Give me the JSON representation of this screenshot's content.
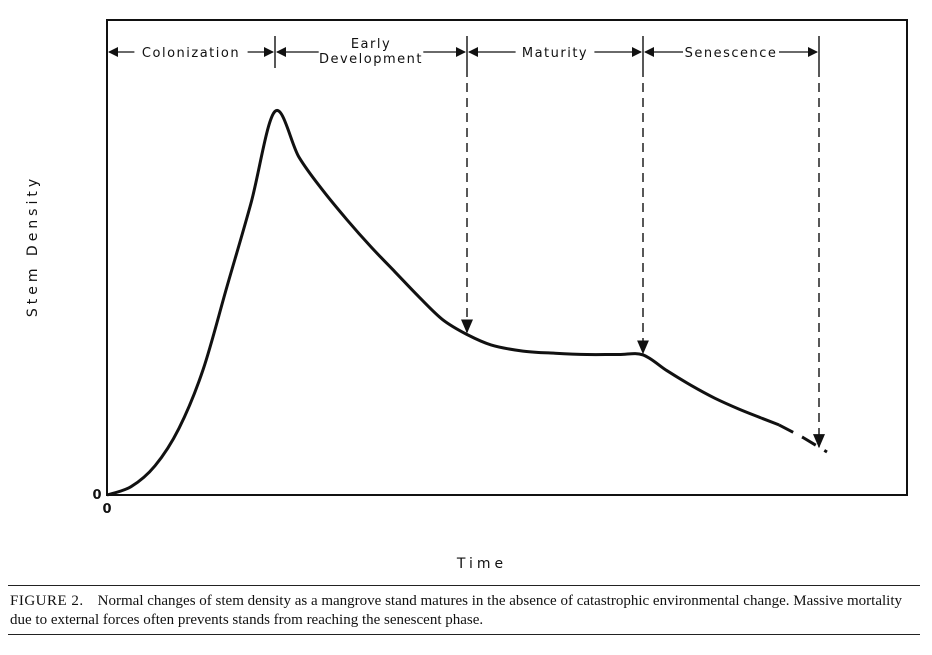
{
  "chart_data": {
    "type": "line",
    "xlabel": "Time",
    "ylabel": "Stem Density",
    "x_tick_labels": [
      "0"
    ],
    "y_tick_labels": [
      "0"
    ],
    "xlim": [
      0,
      100
    ],
    "ylim": [
      0,
      100
    ],
    "grid": false,
    "phases": [
      {
        "label_lines": [
          "Colonization"
        ],
        "start": 0,
        "end": 21
      },
      {
        "label_lines": [
          "Early",
          "Development"
        ],
        "start": 21,
        "end": 45
      },
      {
        "label_lines": [
          "Maturity"
        ],
        "start": 45,
        "end": 67
      },
      {
        "label_lines": [
          "Senescence"
        ],
        "start": 67,
        "end": 89
      }
    ],
    "phase_boundary_arrows": [
      {
        "x": 45,
        "y_target": 38.5
      },
      {
        "x": 67,
        "y_target": 33.5
      },
      {
        "x": 89,
        "y_target": 11.0
      }
    ],
    "series": [
      {
        "style": "solid",
        "points": [
          [
            0,
            0
          ],
          [
            3,
            2
          ],
          [
            6,
            7
          ],
          [
            9,
            16
          ],
          [
            12,
            30
          ],
          [
            15,
            50
          ],
          [
            18,
            70
          ],
          [
            21,
            92
          ],
          [
            24,
            81
          ],
          [
            27,
            73
          ],
          [
            30,
            66
          ],
          [
            33,
            59.5
          ],
          [
            36,
            53.5
          ],
          [
            39,
            47.5
          ],
          [
            42,
            42
          ],
          [
            45,
            38.5
          ],
          [
            48,
            36
          ],
          [
            52,
            34.5
          ],
          [
            56,
            34
          ],
          [
            60,
            33.7
          ],
          [
            64,
            33.7
          ],
          [
            67,
            33.6
          ],
          [
            70,
            29.8
          ],
          [
            73,
            26.3
          ],
          [
            76,
            23.2
          ],
          [
            79,
            20.6
          ],
          [
            82,
            18.3
          ],
          [
            84,
            16.8
          ]
        ]
      },
      {
        "style": "dashed",
        "points": [
          [
            84,
            16.8
          ],
          [
            87,
            13.8
          ],
          [
            90,
            10.3
          ]
        ]
      }
    ]
  },
  "caption": {
    "label": "FIGURE 2.",
    "text": "Normal changes of stem density as a mangrove stand matures in the absence of catastrophic environmental change. Massive mortality due to external forces often prevents stands from reaching the senescent phase."
  }
}
